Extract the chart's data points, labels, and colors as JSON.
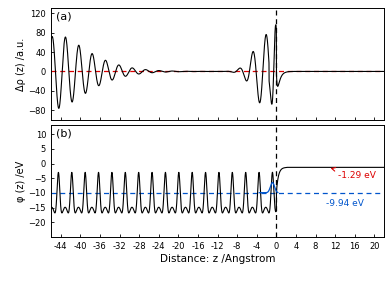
{
  "xlim": [
    -46,
    22
  ],
  "xticks": [
    -44,
    -40,
    -36,
    -32,
    -28,
    -24,
    -20,
    -16,
    -12,
    -8,
    -4,
    0,
    4,
    8,
    12,
    16,
    20
  ],
  "xlabel": "Distance: z /Angstrom",
  "panel_a": {
    "label": "(a)",
    "ylim": [
      -100,
      130
    ],
    "yticks": [
      -80,
      -40,
      0,
      40,
      80,
      120
    ],
    "ylabel": "Δρ (z) /a.u."
  },
  "panel_b": {
    "label": "(b)",
    "ylim": [
      -25,
      13
    ],
    "yticks": [
      -20,
      -15,
      -10,
      -5,
      0,
      5,
      10
    ],
    "ylabel": "φ (z) /eV",
    "dashed_level": -9.94,
    "annotation_top": "-1.29 eV",
    "annotation_bot": "-9.94 eV",
    "top_level": -1.29
  },
  "dashed_x": 0,
  "red_color": "#dd0000",
  "blue_color": "#0055cc",
  "black_color": "#000000",
  "period": 2.73,
  "surface_x": 0.0,
  "bulk_start": -44.5,
  "vacuum_plateau": -1.29,
  "bulk_avg": -9.94
}
